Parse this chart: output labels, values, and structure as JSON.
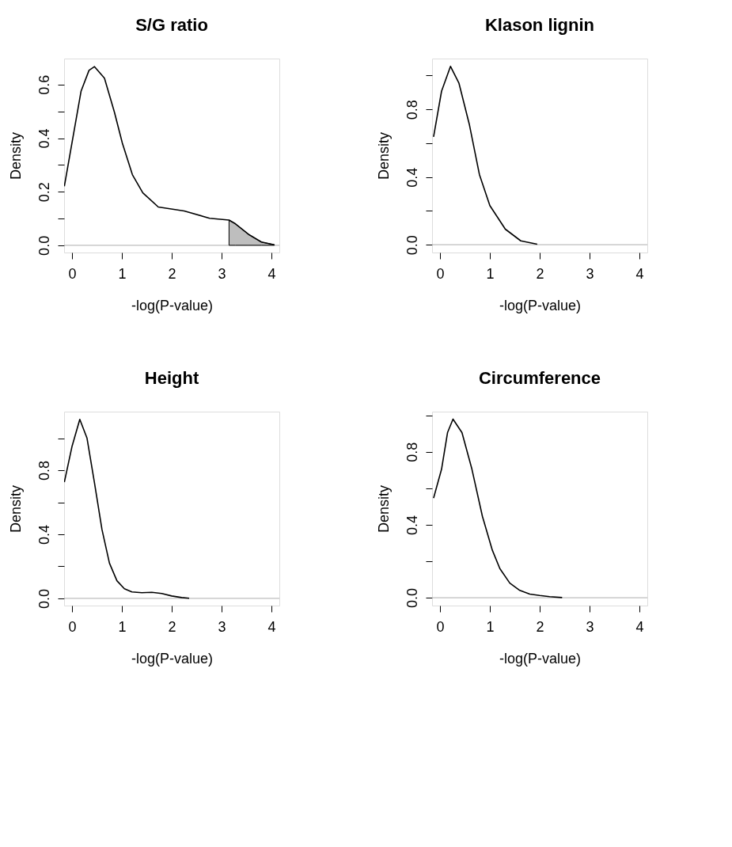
{
  "chart_data": [
    {
      "type": "line",
      "title": "S/G ratio",
      "xlabel": "-log(P-value)",
      "ylabel": "Density",
      "xlim": [
        -0.16,
        4.16
      ],
      "ylim": [
        -0.027,
        0.697
      ],
      "xticks": [
        0,
        1,
        2,
        3,
        4
      ],
      "yticks": [
        {
          "value": 0,
          "label": "0.0"
        },
        {
          "value": 0.1,
          "label": null
        },
        {
          "value": 0.2,
          "label": "0.2"
        },
        {
          "value": 0.3,
          "label": null
        },
        {
          "value": 0.4,
          "label": "0.4"
        },
        {
          "value": 0.5,
          "label": null
        },
        {
          "value": 0.6,
          "label": "0.6"
        }
      ],
      "ref_lines": [
        {
          "axis": "y",
          "value": 0,
          "color": "#bebebe"
        }
      ],
      "series": [
        {
          "type": "area",
          "color": "#bebebe",
          "x": [
            3.15,
            3.28,
            3.54,
            3.8,
            4.06
          ],
          "values": [
            0.094,
            0.08,
            0.041,
            0.012,
            0.002
          ]
        },
        {
          "color": "#000000",
          "x": [
            -0.155,
            0.18,
            0.34,
            0.45,
            0.65,
            0.85,
            1.01,
            1.21,
            1.42,
            1.73,
            2.25,
            2.76,
            3.15,
            3.28,
            3.54,
            3.8,
            4.06
          ],
          "values": [
            0.22,
            0.575,
            0.653,
            0.667,
            0.624,
            0.497,
            0.381,
            0.264,
            0.196,
            0.143,
            0.128,
            0.101,
            0.094,
            0.08,
            0.041,
            0.012,
            0.002
          ]
        }
      ]
    },
    {
      "type": "line",
      "title": "Klason lignin",
      "xlabel": "-log(P-value)",
      "ylabel": "Density",
      "xlim": [
        -0.16,
        4.16
      ],
      "ylim": [
        -0.046,
        1.1
      ],
      "xticks": [
        0,
        1,
        2,
        3,
        4
      ],
      "yticks": [
        {
          "value": 0,
          "label": "0.0"
        },
        {
          "value": 0.2,
          "label": null
        },
        {
          "value": 0.4,
          "label": "0.4"
        },
        {
          "value": 0.6,
          "label": null
        },
        {
          "value": 0.8,
          "label": "0.8"
        },
        {
          "value": 1.0,
          "label": null
        }
      ],
      "ref_lines": [
        {
          "axis": "y",
          "value": 0,
          "color": "#bebebe"
        }
      ],
      "series": [
        {
          "color": "#000000",
          "x": [
            -0.13,
            0.03,
            0.21,
            0.38,
            0.59,
            0.79,
            1.0,
            1.31,
            1.62,
            1.95
          ],
          "values": [
            0.638,
            0.907,
            1.054,
            0.954,
            0.708,
            0.415,
            0.231,
            0.092,
            0.023,
            0.003
          ]
        }
      ]
    },
    {
      "type": "line",
      "title": "Height",
      "xlabel": "-log(P-value)",
      "ylabel": "Density",
      "xlim": [
        -0.16,
        4.16
      ],
      "ylim": [
        -0.045,
        1.166
      ],
      "xticks": [
        0,
        1,
        2,
        3,
        4
      ],
      "yticks": [
        {
          "value": 0,
          "label": "0.0"
        },
        {
          "value": 0.2,
          "label": null
        },
        {
          "value": 0.4,
          "label": "0.4"
        },
        {
          "value": 0.6,
          "label": null
        },
        {
          "value": 0.8,
          "label": "0.8"
        },
        {
          "value": 1.0,
          "label": null
        }
      ],
      "ref_lines": [
        {
          "axis": "y",
          "value": 0,
          "color": "#bebebe"
        }
      ],
      "series": [
        {
          "color": "#000000",
          "x": [
            -0.155,
            0.0,
            0.155,
            0.3,
            0.45,
            0.6,
            0.75,
            0.9,
            1.05,
            1.2,
            1.4,
            1.6,
            1.8,
            2.0,
            2.2,
            2.35
          ],
          "values": [
            0.726,
            0.95,
            1.118,
            1.0,
            0.72,
            0.43,
            0.22,
            0.11,
            0.06,
            0.04,
            0.035,
            0.038,
            0.03,
            0.015,
            0.005,
            0.001
          ]
        }
      ]
    },
    {
      "type": "line",
      "title": "Circumference",
      "xlabel": "-log(P-value)",
      "ylabel": "Density",
      "xlim": [
        -0.16,
        4.16
      ],
      "ylim": [
        -0.043,
        1.02
      ],
      "xticks": [
        0,
        1,
        2,
        3,
        4
      ],
      "yticks": [
        {
          "value": 0,
          "label": "0.0"
        },
        {
          "value": 0.2,
          "label": null
        },
        {
          "value": 0.4,
          "label": "0.4"
        },
        {
          "value": 0.6,
          "label": null
        },
        {
          "value": 0.8,
          "label": "0.8"
        },
        {
          "value": 1.0,
          "label": null
        }
      ],
      "ref_lines": [
        {
          "axis": "y",
          "value": 0,
          "color": "#bebebe"
        }
      ],
      "series": [
        {
          "color": "#000000",
          "x": [
            -0.13,
            0.03,
            0.15,
            0.26,
            0.44,
            0.64,
            0.85,
            1.05,
            1.2,
            1.4,
            1.6,
            1.8,
            2.0,
            2.2,
            2.45
          ],
          "values": [
            0.546,
            0.704,
            0.905,
            0.979,
            0.905,
            0.704,
            0.446,
            0.26,
            0.16,
            0.08,
            0.04,
            0.02,
            0.012,
            0.006,
            0.001
          ]
        }
      ]
    }
  ]
}
